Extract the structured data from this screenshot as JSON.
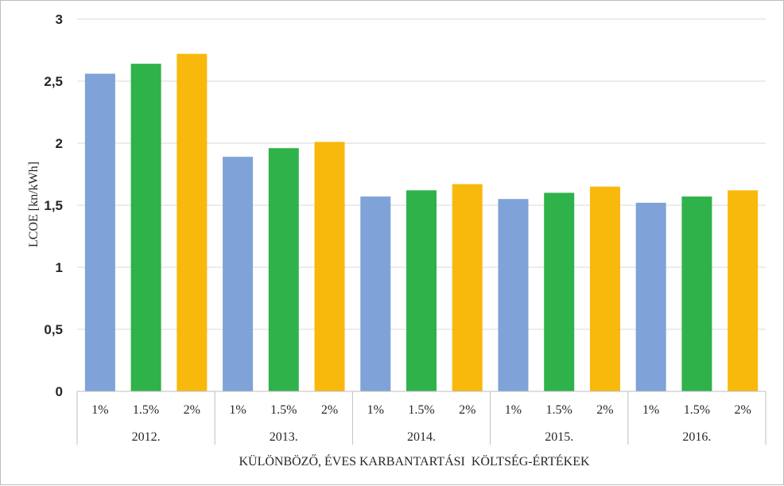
{
  "chart_data": {
    "type": "bar",
    "title": "",
    "ylabel": "LCOE [kn/kWh]",
    "xlabel": "KÜLÖNBÖZŐ, ÉVES KARBANTARTÁSI  KÖLTSÉG-ÉRTÉKEK",
    "ylim": [
      0,
      3
    ],
    "yticks": [
      "0",
      "0,5",
      "1",
      "1,5",
      "2",
      "2,5",
      "3"
    ],
    "grid": true,
    "groups": [
      "2012.",
      "2013.",
      "2014.",
      "2015.",
      "2016."
    ],
    "subcategories": [
      "1%",
      "1.5%",
      "2%"
    ],
    "colors": [
      "#7fa2d8",
      "#2fb24a",
      "#f8b80c"
    ],
    "values": [
      [
        2.56,
        2.64,
        2.72
      ],
      [
        1.89,
        1.96,
        2.01
      ],
      [
        1.57,
        1.62,
        1.67
      ],
      [
        1.55,
        1.6,
        1.65
      ],
      [
        1.52,
        1.57,
        1.62
      ]
    ]
  }
}
